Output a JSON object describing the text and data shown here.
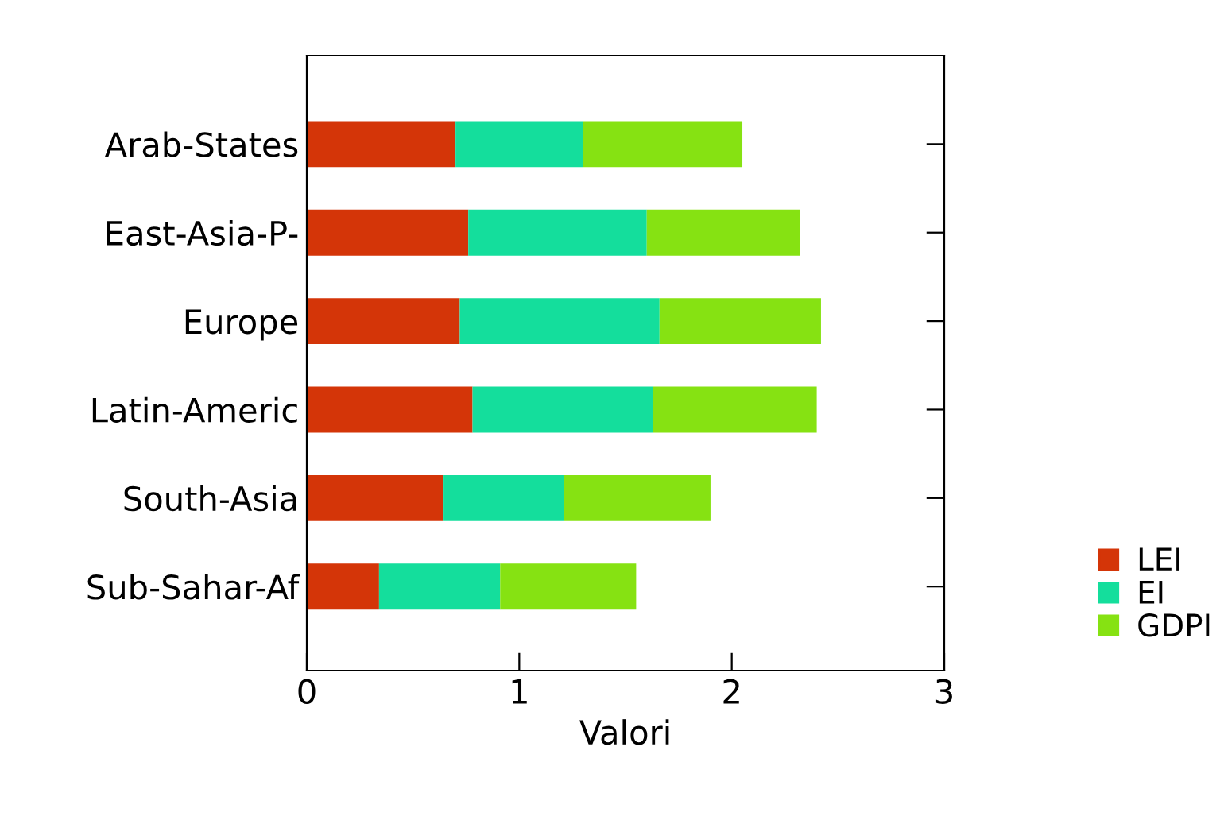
{
  "chart_data": {
    "type": "bar",
    "orientation": "horizontal",
    "stacked": true,
    "xlabel": "Valori",
    "categories": [
      "Arab-States",
      "East-Asia-P-",
      "Europe",
      "Latin-Americ",
      "South-Asia",
      "Sub-Sahar-Af"
    ],
    "series": [
      {
        "name": "LEI",
        "color": "#d43508",
        "values": [
          0.7,
          0.76,
          0.72,
          0.78,
          0.64,
          0.34
        ]
      },
      {
        "name": "EI",
        "color": "#14de9c",
        "values": [
          0.6,
          0.84,
          0.94,
          0.85,
          0.57,
          0.57
        ]
      },
      {
        "name": "GDPI",
        "color": "#86e212",
        "values": [
          0.75,
          0.72,
          0.76,
          0.77,
          0.69,
          0.64
        ]
      }
    ],
    "xlim": [
      0,
      3
    ],
    "xticks": [
      0,
      1,
      2,
      3
    ],
    "grid": false,
    "legend": "bottom right"
  }
}
